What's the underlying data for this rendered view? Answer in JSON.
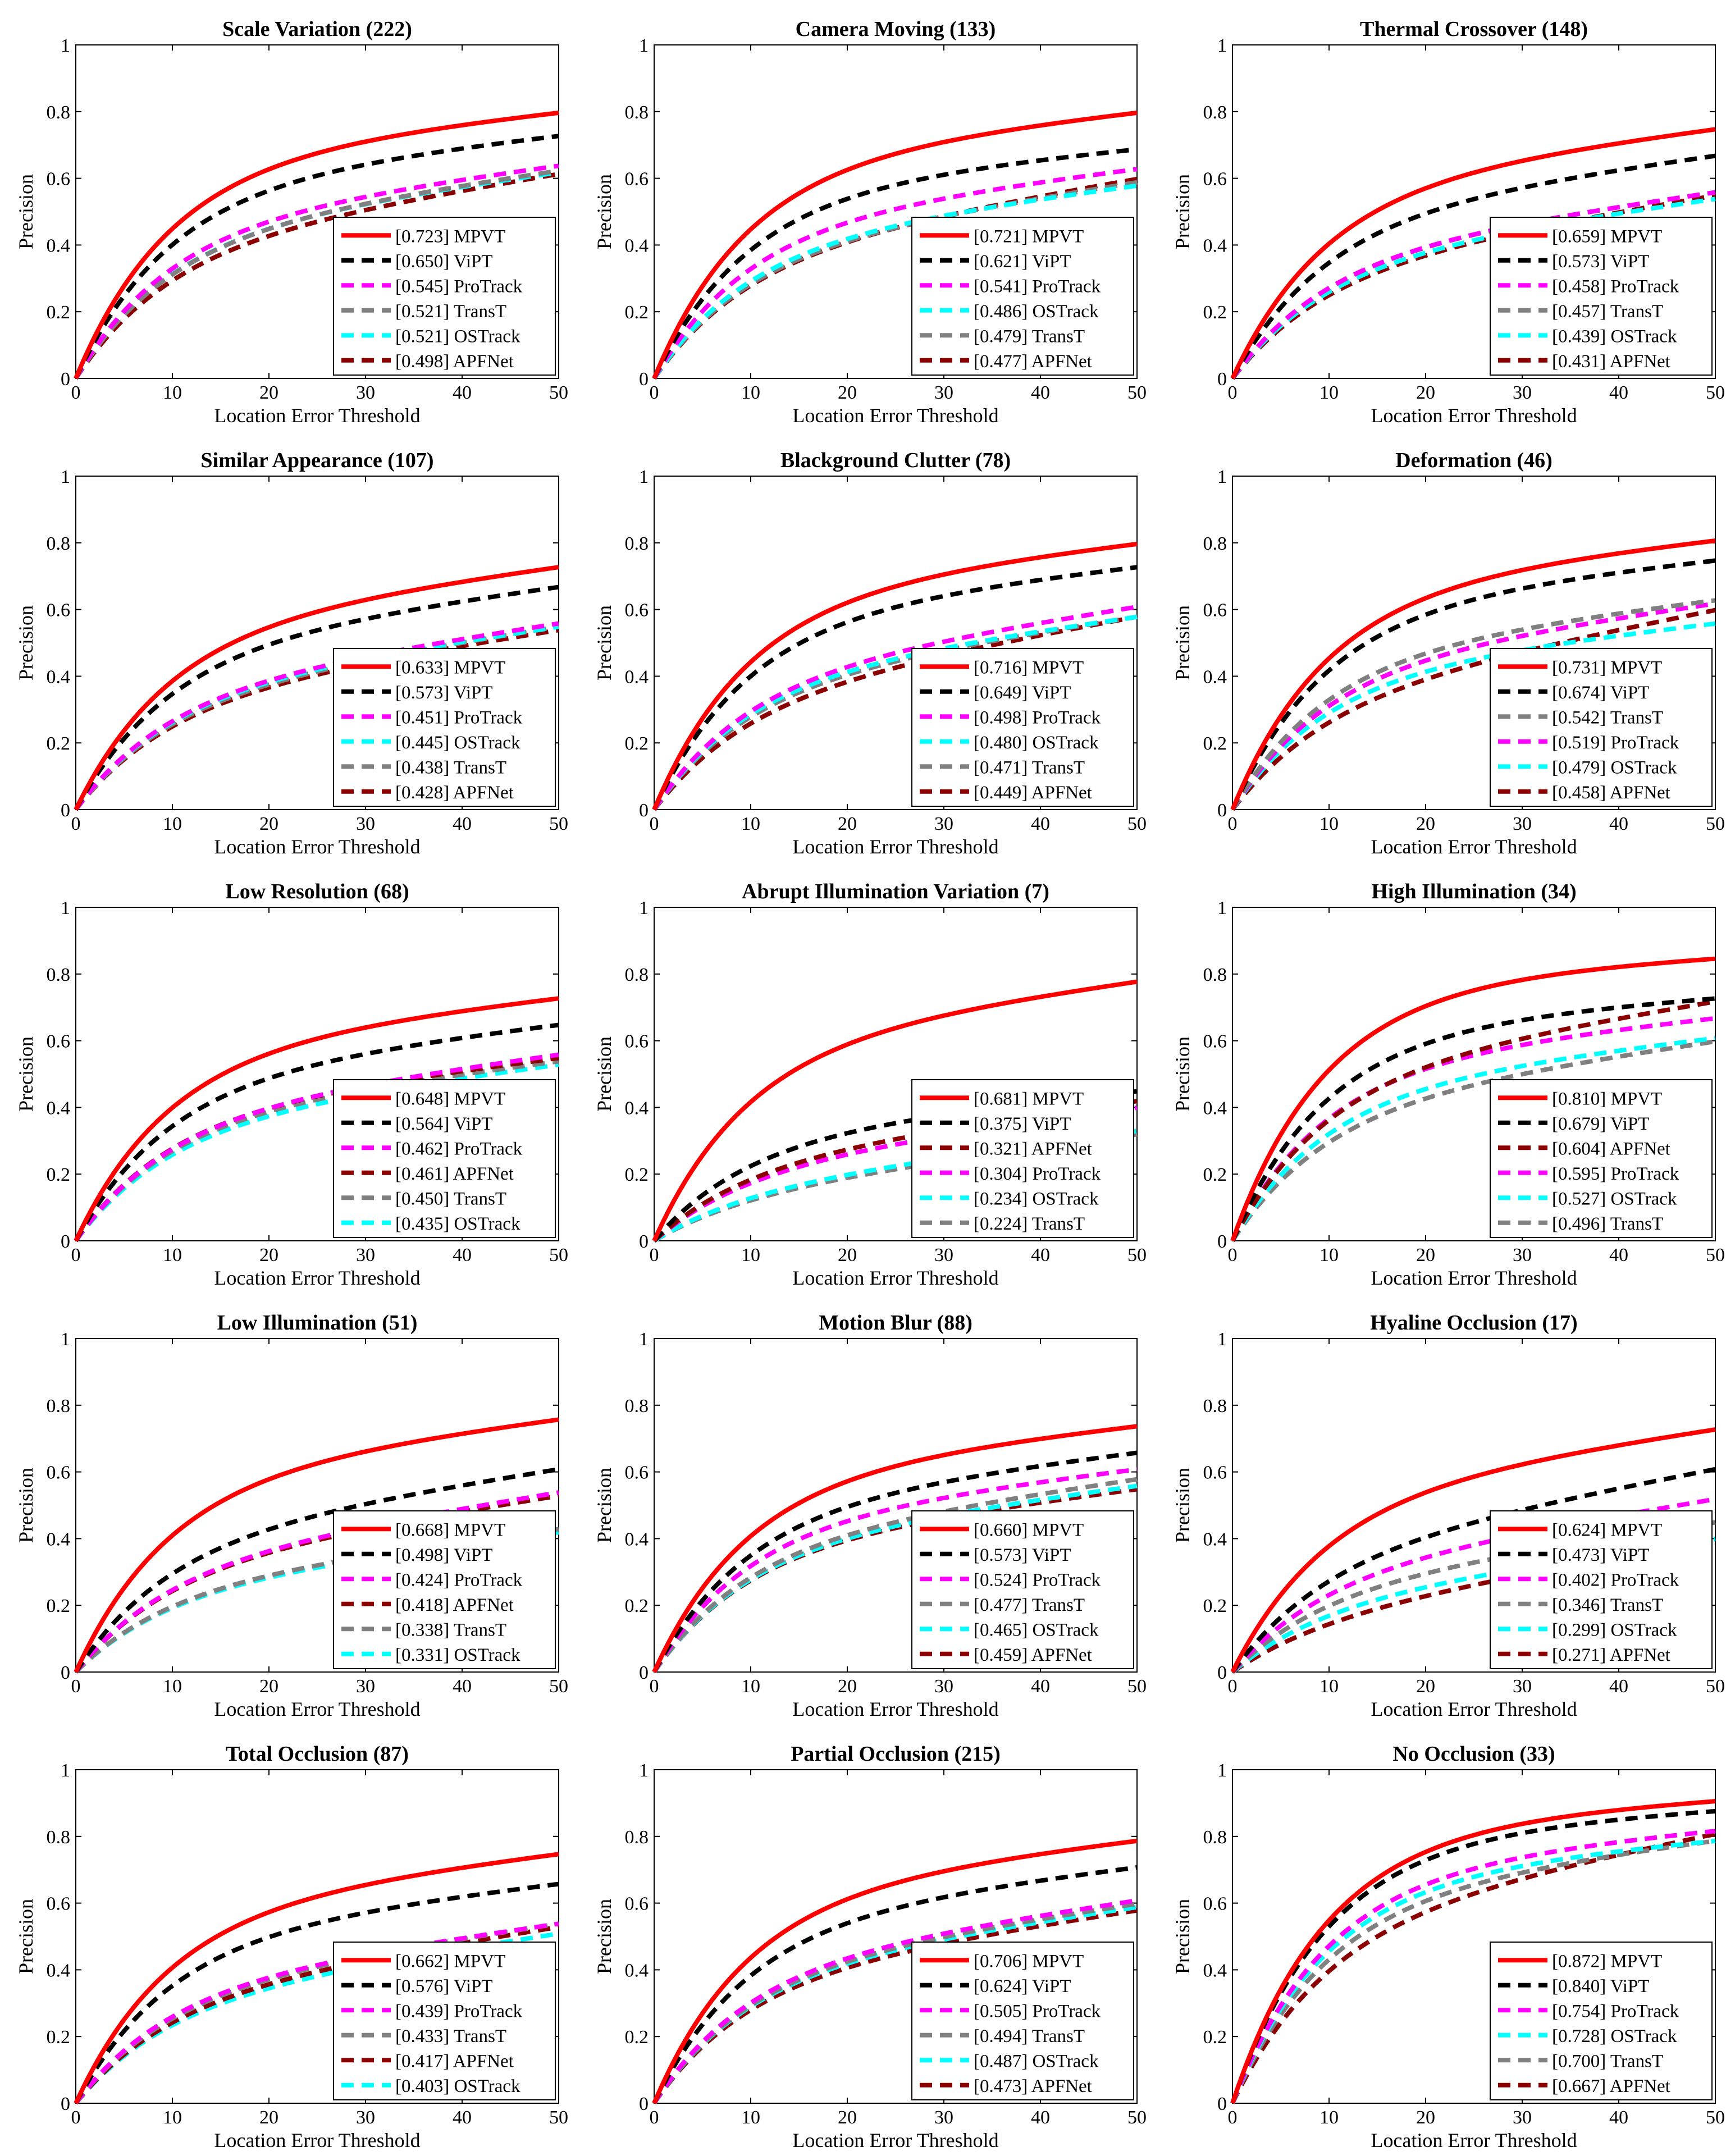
{
  "axes": {
    "xlabel": "Location Error Threshold",
    "ylabel": "Precision",
    "xlim": [
      0,
      50
    ],
    "ylim": [
      0,
      1
    ],
    "xticks": [
      "0",
      "10",
      "20",
      "30",
      "40",
      "50"
    ],
    "yticks": [
      "0",
      "0.2",
      "0.4",
      "0.6",
      "0.8",
      "1"
    ]
  },
  "colors": {
    "MPVT": "#ff0000",
    "ViPT": "#000000",
    "ProTrack": "#ff00ff",
    "OSTrack": "#00ffff",
    "TransT": "#808080",
    "APFNet": "#8b0000"
  },
  "chart_data": [
    {
      "type": "line",
      "title": "Scale Variation (222)",
      "legend_position": "bottom-right",
      "series": [
        {
          "name": "MPVT",
          "label": "[0.723] MPVT",
          "score": 0.723,
          "end": 0.8
        },
        {
          "name": "ViPT",
          "label": "[0.650] ViPT",
          "score": 0.65,
          "end": 0.73
        },
        {
          "name": "ProTrack",
          "label": "[0.545] ProTrack",
          "score": 0.545,
          "end": 0.64
        },
        {
          "name": "TransT",
          "label": "[0.521] TransT",
          "score": 0.521,
          "end": 0.625
        },
        {
          "name": "OSTrack",
          "label": "[0.521] OSTrack",
          "score": 0.521,
          "end": 0.62
        },
        {
          "name": "APFNet",
          "label": "[0.498] APFNet",
          "score": 0.498,
          "end": 0.615
        }
      ]
    },
    {
      "type": "line",
      "title": "Camera Moving (133)",
      "legend_position": "bottom-right",
      "series": [
        {
          "name": "MPVT",
          "label": "[0.721] MPVT",
          "score": 0.721,
          "end": 0.8
        },
        {
          "name": "ViPT",
          "label": "[0.621] ViPT",
          "score": 0.621,
          "end": 0.69
        },
        {
          "name": "ProTrack",
          "label": "[0.541] ProTrack",
          "score": 0.541,
          "end": 0.63
        },
        {
          "name": "OSTrack",
          "label": "[0.486] OSTrack",
          "score": 0.486,
          "end": 0.58
        },
        {
          "name": "TransT",
          "label": "[0.479] TransT",
          "score": 0.479,
          "end": 0.59
        },
        {
          "name": "APFNet",
          "label": "[0.477] APFNet",
          "score": 0.477,
          "end": 0.6
        }
      ]
    },
    {
      "type": "line",
      "title": "Thermal Crossover (148)",
      "legend_position": "bottom-right",
      "series": [
        {
          "name": "MPVT",
          "label": "[0.659] MPVT",
          "score": 0.659,
          "end": 0.75
        },
        {
          "name": "ViPT",
          "label": "[0.573] ViPT",
          "score": 0.573,
          "end": 0.67
        },
        {
          "name": "ProTrack",
          "label": "[0.458] ProTrack",
          "score": 0.458,
          "end": 0.56
        },
        {
          "name": "TransT",
          "label": "[0.457] TransT",
          "score": 0.457,
          "end": 0.56
        },
        {
          "name": "OSTrack",
          "label": "[0.439] OSTrack",
          "score": 0.439,
          "end": 0.54
        },
        {
          "name": "APFNet",
          "label": "[0.431] APFNet",
          "score": 0.431,
          "end": 0.55
        }
      ]
    },
    {
      "type": "line",
      "title": "Similar Appearance (107)",
      "legend_position": "bottom-right",
      "series": [
        {
          "name": "MPVT",
          "label": "[0.633] MPVT",
          "score": 0.633,
          "end": 0.73
        },
        {
          "name": "ViPT",
          "label": "[0.573] ViPT",
          "score": 0.573,
          "end": 0.67
        },
        {
          "name": "ProTrack",
          "label": "[0.451] ProTrack",
          "score": 0.451,
          "end": 0.56
        },
        {
          "name": "OSTrack",
          "label": "[0.445] OSTrack",
          "score": 0.445,
          "end": 0.55
        },
        {
          "name": "TransT",
          "label": "[0.438] TransT",
          "score": 0.438,
          "end": 0.55
        },
        {
          "name": "APFNet",
          "label": "[0.428] APFNet",
          "score": 0.428,
          "end": 0.54
        }
      ]
    },
    {
      "type": "line",
      "title": "Blackground Clutter (78)",
      "legend_position": "bottom-right",
      "series": [
        {
          "name": "MPVT",
          "label": "[0.716] MPVT",
          "score": 0.716,
          "end": 0.8
        },
        {
          "name": "ViPT",
          "label": "[0.649] ViPT",
          "score": 0.649,
          "end": 0.73
        },
        {
          "name": "ProTrack",
          "label": "[0.498] ProTrack",
          "score": 0.498,
          "end": 0.61
        },
        {
          "name": "OSTrack",
          "label": "[0.480] OSTrack",
          "score": 0.48,
          "end": 0.58
        },
        {
          "name": "TransT",
          "label": "[0.471] TransT",
          "score": 0.471,
          "end": 0.58
        },
        {
          "name": "APFNet",
          "label": "[0.449] APFNet",
          "score": 0.449,
          "end": 0.58
        }
      ]
    },
    {
      "type": "line",
      "title": "Deformation (46)",
      "legend_position": "bottom-right",
      "series": [
        {
          "name": "MPVT",
          "label": "[0.731] MPVT",
          "score": 0.731,
          "end": 0.81
        },
        {
          "name": "ViPT",
          "label": "[0.674] ViPT",
          "score": 0.674,
          "end": 0.75
        },
        {
          "name": "TransT",
          "label": "[0.542] TransT",
          "score": 0.542,
          "end": 0.63
        },
        {
          "name": "ProTrack",
          "label": "[0.519] ProTrack",
          "score": 0.519,
          "end": 0.62
        },
        {
          "name": "OSTrack",
          "label": "[0.479] OSTrack",
          "score": 0.479,
          "end": 0.56
        },
        {
          "name": "APFNet",
          "label": "[0.458] APFNet",
          "score": 0.458,
          "end": 0.6
        }
      ]
    },
    {
      "type": "line",
      "title": "Low Resolution (68)",
      "legend_position": "bottom-right",
      "series": [
        {
          "name": "MPVT",
          "label": "[0.648] MPVT",
          "score": 0.648,
          "end": 0.73
        },
        {
          "name": "ViPT",
          "label": "[0.564] ViPT",
          "score": 0.564,
          "end": 0.65
        },
        {
          "name": "ProTrack",
          "label": "[0.462] ProTrack",
          "score": 0.462,
          "end": 0.56
        },
        {
          "name": "APFNet",
          "label": "[0.461] APFNet",
          "score": 0.461,
          "end": 0.55
        },
        {
          "name": "TransT",
          "label": "[0.450] TransT",
          "score": 0.45,
          "end": 0.54
        },
        {
          "name": "OSTrack",
          "label": "[0.435] OSTrack",
          "score": 0.435,
          "end": 0.53
        }
      ]
    },
    {
      "type": "line",
      "title": "Abrupt Illumination Variation (7)",
      "legend_position": "bottom-right",
      "series": [
        {
          "name": "MPVT",
          "label": "[0.681] MPVT",
          "score": 0.681,
          "end": 0.78
        },
        {
          "name": "ViPT",
          "label": "[0.375] ViPT",
          "score": 0.375,
          "end": 0.45
        },
        {
          "name": "APFNet",
          "label": "[0.321] APFNet",
          "score": 0.321,
          "end": 0.42
        },
        {
          "name": "ProTrack",
          "label": "[0.304] ProTrack",
          "score": 0.304,
          "end": 0.4
        },
        {
          "name": "OSTrack",
          "label": "[0.234] OSTrack",
          "score": 0.234,
          "end": 0.33
        },
        {
          "name": "TransT",
          "label": "[0.224] TransT",
          "score": 0.224,
          "end": 0.32
        }
      ]
    },
    {
      "type": "line",
      "title": "High Illumination (34)",
      "legend_position": "bottom-right",
      "series": [
        {
          "name": "MPVT",
          "label": "[0.810] MPVT",
          "score": 0.81,
          "end": 0.85
        },
        {
          "name": "ViPT",
          "label": "[0.679] ViPT",
          "score": 0.679,
          "end": 0.73
        },
        {
          "name": "APFNet",
          "label": "[0.604] APFNet",
          "score": 0.604,
          "end": 0.72
        },
        {
          "name": "ProTrack",
          "label": "[0.595] ProTrack",
          "score": 0.595,
          "end": 0.67
        },
        {
          "name": "OSTrack",
          "label": "[0.527] OSTrack",
          "score": 0.527,
          "end": 0.61
        },
        {
          "name": "TransT",
          "label": "[0.496] TransT",
          "score": 0.496,
          "end": 0.6
        }
      ]
    },
    {
      "type": "line",
      "title": "Low Illumination (51)",
      "legend_position": "bottom-right",
      "series": [
        {
          "name": "MPVT",
          "label": "[0.668] MPVT",
          "score": 0.668,
          "end": 0.76
        },
        {
          "name": "ViPT",
          "label": "[0.498] ViPT",
          "score": 0.498,
          "end": 0.61
        },
        {
          "name": "ProTrack",
          "label": "[0.424] ProTrack",
          "score": 0.424,
          "end": 0.54
        },
        {
          "name": "APFNet",
          "label": "[0.418] APFNet",
          "score": 0.418,
          "end": 0.53
        },
        {
          "name": "TransT",
          "label": "[0.338] TransT",
          "score": 0.338,
          "end": 0.43
        },
        {
          "name": "OSTrack",
          "label": "[0.331] OSTrack",
          "score": 0.331,
          "end": 0.42
        }
      ]
    },
    {
      "type": "line",
      "title": "Motion Blur (88)",
      "legend_position": "bottom-right",
      "series": [
        {
          "name": "MPVT",
          "label": "[0.660] MPVT",
          "score": 0.66,
          "end": 0.74
        },
        {
          "name": "ViPT",
          "label": "[0.573] ViPT",
          "score": 0.573,
          "end": 0.66
        },
        {
          "name": "ProTrack",
          "label": "[0.524] ProTrack",
          "score": 0.524,
          "end": 0.61
        },
        {
          "name": "TransT",
          "label": "[0.477] TransT",
          "score": 0.477,
          "end": 0.58
        },
        {
          "name": "OSTrack",
          "label": "[0.465] OSTrack",
          "score": 0.465,
          "end": 0.56
        },
        {
          "name": "APFNet",
          "label": "[0.459] APFNet",
          "score": 0.459,
          "end": 0.55
        }
      ]
    },
    {
      "type": "line",
      "title": "Hyaline Occlusion (17)",
      "legend_position": "bottom-right",
      "series": [
        {
          "name": "MPVT",
          "label": "[0.624] MPVT",
          "score": 0.624,
          "end": 0.73
        },
        {
          "name": "ViPT",
          "label": "[0.473] ViPT",
          "score": 0.473,
          "end": 0.61
        },
        {
          "name": "ProTrack",
          "label": "[0.402] ProTrack",
          "score": 0.402,
          "end": 0.52
        },
        {
          "name": "TransT",
          "label": "[0.346] TransT",
          "score": 0.346,
          "end": 0.45
        },
        {
          "name": "OSTrack",
          "label": "[0.299] OSTrack",
          "score": 0.299,
          "end": 0.4
        },
        {
          "name": "APFNet",
          "label": "[0.271] APFNet",
          "score": 0.271,
          "end": 0.4
        }
      ]
    },
    {
      "type": "line",
      "title": "Total Occlusion (87)",
      "legend_position": "bottom-right",
      "series": [
        {
          "name": "MPVT",
          "label": "[0.662] MPVT",
          "score": 0.662,
          "end": 0.75
        },
        {
          "name": "ViPT",
          "label": "[0.576] ViPT",
          "score": 0.576,
          "end": 0.66
        },
        {
          "name": "ProTrack",
          "label": "[0.439] ProTrack",
          "score": 0.439,
          "end": 0.54
        },
        {
          "name": "TransT",
          "label": "[0.433] TransT",
          "score": 0.433,
          "end": 0.54
        },
        {
          "name": "APFNet",
          "label": "[0.417] APFNet",
          "score": 0.417,
          "end": 0.53
        },
        {
          "name": "OSTrack",
          "label": "[0.403] OSTrack",
          "score": 0.403,
          "end": 0.51
        }
      ]
    },
    {
      "type": "line",
      "title": "Partial Occlusion (215)",
      "legend_position": "bottom-right",
      "series": [
        {
          "name": "MPVT",
          "label": "[0.706] MPVT",
          "score": 0.706,
          "end": 0.79
        },
        {
          "name": "ViPT",
          "label": "[0.624] ViPT",
          "score": 0.624,
          "end": 0.71
        },
        {
          "name": "ProTrack",
          "label": "[0.505] ProTrack",
          "score": 0.505,
          "end": 0.61
        },
        {
          "name": "TransT",
          "label": "[0.494] TransT",
          "score": 0.494,
          "end": 0.6
        },
        {
          "name": "OSTrack",
          "label": "[0.487] OSTrack",
          "score": 0.487,
          "end": 0.59
        },
        {
          "name": "APFNet",
          "label": "[0.473] APFNet",
          "score": 0.473,
          "end": 0.58
        }
      ]
    },
    {
      "type": "line",
      "title": "No Occlusion (33)",
      "legend_position": "bottom-right",
      "series": [
        {
          "name": "MPVT",
          "label": "[0.872] MPVT",
          "score": 0.872,
          "end": 0.91
        },
        {
          "name": "ViPT",
          "label": "[0.840] ViPT",
          "score": 0.84,
          "end": 0.88
        },
        {
          "name": "ProTrack",
          "label": "[0.754] ProTrack",
          "score": 0.754,
          "end": 0.82
        },
        {
          "name": "OSTrack",
          "label": "[0.728] OSTrack",
          "score": 0.728,
          "end": 0.79
        },
        {
          "name": "TransT",
          "label": "[0.700] TransT",
          "score": 0.7,
          "end": 0.79
        },
        {
          "name": "APFNet",
          "label": "[0.667] APFNet",
          "score": 0.667,
          "end": 0.81
        }
      ]
    }
  ]
}
